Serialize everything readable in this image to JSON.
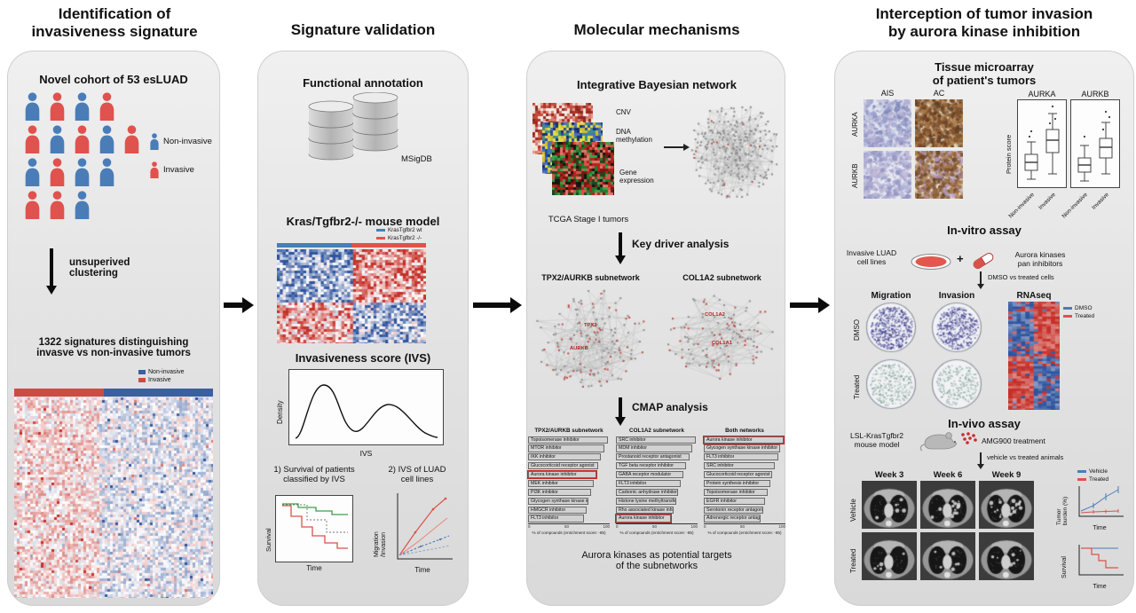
{
  "panel1": {
    "title": "Identification of\ninvasiveness signature",
    "cohort_heading": "Novel cohort of 53 esLUAD",
    "people_rows": [
      "BRBR",
      "RBRBR",
      "BRBB",
      "RRB"
    ],
    "people_legend": [
      {
        "label": "Non-invasive",
        "color": "#4a7db8"
      },
      {
        "label": "Invasive",
        "color": "#e0524e"
      }
    ],
    "clustering_label": "unsuperived\nclustering",
    "signatures_heading": "1322 signatures distinguishing\ninvasve vs non-invasive tumors",
    "heatmap_legend": [
      {
        "label": "Non-invasive",
        "color": "#3b5fa0"
      },
      {
        "label": "Invasive",
        "color": "#cc4b44"
      }
    ]
  },
  "panel2": {
    "title": "Signature validation",
    "functional_heading": "Functional annotation",
    "db_label": "MSigDB",
    "mouse_heading": "Kras/Tgfbr2-/- mouse model",
    "mouse_legend": [
      {
        "label": "KrasTgfbr2 wt",
        "color": "#4a7db8"
      },
      {
        "label": "KrasTgfbr2 -/-",
        "color": "#e0524e"
      }
    ],
    "ivs_heading": "Invasiveness score (IVS)",
    "density_ylabel": "Density",
    "density_xlabel": "IVS",
    "survival_heading": "1) Survival of patients\nclassified by IVS",
    "survival_ylabel": "Survival",
    "survival_xlabel": "Time",
    "luad_heading": "2) IVS of LUAD\ncell lines",
    "luad_ylabel": "Migration\n/Invasion",
    "luad_xlabel": "Time"
  },
  "panel3": {
    "title": "Molecular mechanisms",
    "bayesian_heading": "Integrative Bayesian network",
    "omics_labels": [
      "CNV",
      "DNA\nmethylation",
      "Gene\nexpression"
    ],
    "tcga_caption": "TCGA Stage I tumors",
    "keydriver_label": "Key driver analysis",
    "subnetworks": [
      {
        "title": "TPX2/AURKB subnetwork",
        "nodes": [
          "TPX2",
          "AURKB"
        ]
      },
      {
        "title": "COL1A2 subnetwork",
        "nodes": [
          "COL1A2",
          "COL1A1"
        ]
      }
    ],
    "cmap_label": "CMAP analysis",
    "conclusion": "Aurora kinases as potential targets\nof the subnetworks",
    "cmap": {
      "axis_label": "% of compounds (enrichment score: -85)",
      "ticks": [
        "0",
        "50",
        "100"
      ],
      "groups": [
        {
          "title": "TPX2/AURKB subnetwork",
          "bars": [
            {
              "label": "Topoisomerase inhibitor",
              "value": 100,
              "highlight": false
            },
            {
              "label": "MTOR inhibitor",
              "value": 95,
              "highlight": false
            },
            {
              "label": "IKK inhibitor",
              "value": 91,
              "highlight": false
            },
            {
              "label": "Glucocorticoid receptor agonist",
              "value": 88,
              "highlight": false
            },
            {
              "label": "Aurora kinase inhibitor",
              "value": 85,
              "highlight": true
            },
            {
              "label": "MEK inhibitor",
              "value": 82,
              "highlight": false
            },
            {
              "label": "PI3K inhibitor",
              "value": 79,
              "highlight": false
            },
            {
              "label": "Glycogen synthase kinase inhibitor",
              "value": 76,
              "highlight": false
            },
            {
              "label": "HMGCR inhibitor",
              "value": 73,
              "highlight": false
            },
            {
              "label": "FLT3 inhibitor",
              "value": 70,
              "highlight": false
            }
          ]
        },
        {
          "title": "COL1A2 subnetwork",
          "bars": [
            {
              "label": "SRC inhibitor",
              "value": 100,
              "highlight": false
            },
            {
              "label": "MDM inhibitor",
              "value": 96,
              "highlight": false
            },
            {
              "label": "Prostanoid receptor antagonist",
              "value": 92,
              "highlight": false
            },
            {
              "label": "TGF beta receptor inhibitor",
              "value": 88,
              "highlight": false
            },
            {
              "label": "GABA receptor modulator",
              "value": 84,
              "highlight": false
            },
            {
              "label": "FLT3 inhibitor",
              "value": 81,
              "highlight": false
            },
            {
              "label": "Carbonic anhydrase inhibitor",
              "value": 78,
              "highlight": false
            },
            {
              "label": "Histone lysine methyltransferase inhibitor",
              "value": 75,
              "highlight": false
            },
            {
              "label": "Rho associated kinase inhibitor",
              "value": 72,
              "highlight": false
            },
            {
              "label": "Aurora kinase inhibitor",
              "value": 69,
              "highlight": true
            }
          ]
        },
        {
          "title": "Both networks",
          "bars": [
            {
              "label": "Aurora kinase inhibitor",
              "value": 100,
              "highlight": true
            },
            {
              "label": "Glycogen synthase kinase inhibitor",
              "value": 96,
              "highlight": false
            },
            {
              "label": "FLT3 inhibitor",
              "value": 93,
              "highlight": false
            },
            {
              "label": "SRC inhibitor",
              "value": 89,
              "highlight": false
            },
            {
              "label": "Glucocorticoid receptor agonist",
              "value": 86,
              "highlight": false
            },
            {
              "label": "Protein synthesis inhibitor",
              "value": 83,
              "highlight": false
            },
            {
              "label": "Topoisomerase inhibitor",
              "value": 80,
              "highlight": false
            },
            {
              "label": "EGFR inhibitor",
              "value": 77,
              "highlight": false
            },
            {
              "label": "Serotonin receptor antagonist",
              "value": 74,
              "highlight": false
            },
            {
              "label": "Adrenergic receptor antagonist",
              "value": 71,
              "highlight": false
            }
          ]
        }
      ]
    }
  },
  "panel4": {
    "title": "Interception of tumor invasion\nby aurora kinase inhibition",
    "tma_heading": "Tissue microarray\nof patient's tumors",
    "tma_col_headers": [
      "AIS",
      "AC"
    ],
    "tma_row_labels": [
      "AURKA",
      "AURKB"
    ],
    "box_headers": [
      "AURKA",
      "AURKB"
    ],
    "box_ylabel": "Protein score",
    "box_xlabels": [
      "Non-invasive",
      "Invasive",
      "Non-invasive",
      "Invasive"
    ],
    "invitro_heading": "In-vitro assay",
    "cells_label": "Invasive LUAD\ncell lines",
    "plus_sign": "+",
    "inhibitor_label": "Aurora kinases\npan inhibitors",
    "invitro_arrow_label": "DMSO vs treated cells",
    "assay_col_headers": [
      "Migration",
      "Invasion",
      "RNAseq"
    ],
    "assay_row_labels": [
      "DMSO",
      "Treated"
    ],
    "rnaseq_legend": [
      {
        "label": "DMSO",
        "color": "#4a7db8"
      },
      {
        "label": "Treated",
        "color": "#e0524e"
      }
    ],
    "invivo_heading": "In-vivo assay",
    "mouse_label": "LSL-KrasTgfbr2\nmouse model",
    "treatment_label": "AMG900 treatment",
    "invivo_arrow_label": "vehicle vs treated animals",
    "week_headers": [
      "Week 3",
      "Week 6",
      "Week 9"
    ],
    "ct_row_labels": [
      "Vehicle",
      "Treated"
    ],
    "burden_legend": [
      {
        "label": "Vehicle",
        "color": "#4a7db8"
      },
      {
        "label": "Treated",
        "color": "#e0524e"
      }
    ],
    "burden_ylabel": "Tumor\nburden (%)",
    "burden_xlabel": "Time",
    "survival_ylabel": "Survival",
    "survival_xlabel": "Time"
  }
}
